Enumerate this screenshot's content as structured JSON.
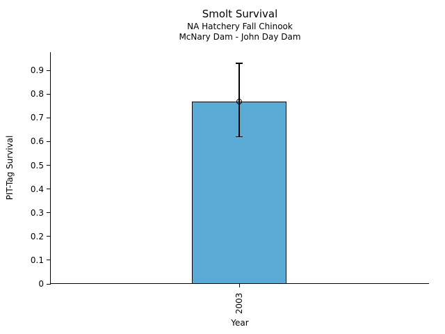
{
  "chart_data": {
    "type": "bar",
    "title": "Smolt Survival",
    "subtitle_lines": [
      "NA Hatchery Fall Chinook",
      "McNary Dam - John Day Dam"
    ],
    "xlabel": "Year",
    "ylabel": "PIT-Tag Survival",
    "categories": [
      "2003"
    ],
    "values": [
      0.77
    ],
    "error_low": [
      0.62
    ],
    "error_high": [
      0.93
    ],
    "yticks": [
      0,
      0.1,
      0.2,
      0.3,
      0.4,
      0.5,
      0.6,
      0.7,
      0.8,
      0.9
    ],
    "ytick_labels": [
      "0",
      "0.1",
      "0.2",
      "0.3",
      "0.4",
      "0.5",
      "0.6",
      "0.7",
      "0.8",
      "0.9"
    ],
    "ylim": [
      0,
      0.977
    ],
    "grid": false,
    "legend": null,
    "colors": {
      "bar_fill": "#5AABD6",
      "bar_edge": "#000000",
      "error_bar": "#000000",
      "axis": "#000000",
      "text": "#000000",
      "background": "#FFFFFF"
    }
  }
}
